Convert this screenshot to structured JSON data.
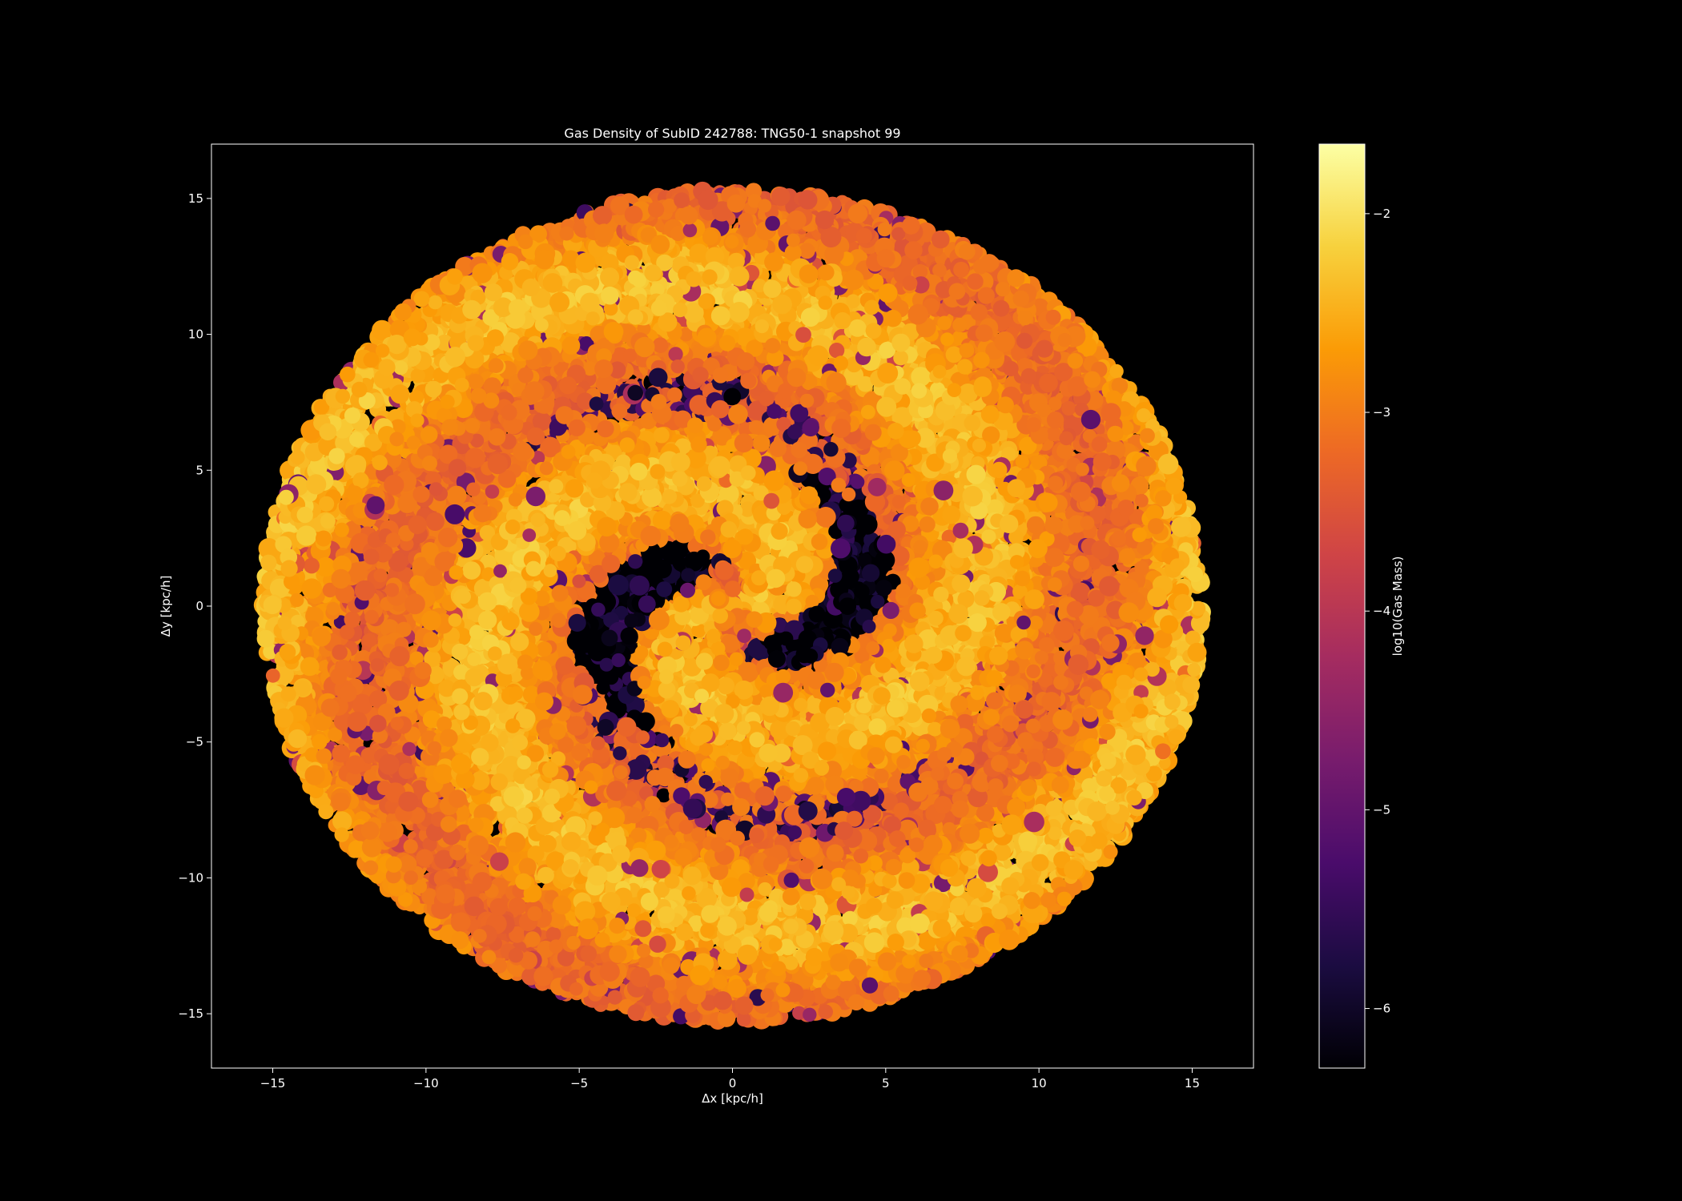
{
  "chart_data": {
    "type": "scatter",
    "title": "Gas Density of SubID 242788: TNG50-1 snapshot 99",
    "xlabel": "Δx [kpc/h]",
    "ylabel": "Δy [kpc/h]",
    "xlim": [
      -17,
      17
    ],
    "ylim": [
      -17,
      17
    ],
    "xticks": [
      -15,
      -10,
      -5,
      0,
      5,
      10,
      15
    ],
    "yticks": [
      -15,
      -10,
      -5,
      0,
      5,
      10,
      15
    ],
    "xtick_labels": [
      "−15",
      "−10",
      "−5",
      "0",
      "5",
      "10",
      "15"
    ],
    "ytick_labels": [
      "−15",
      "−10",
      "−5",
      "0",
      "5",
      "10",
      "15"
    ],
    "grid": false,
    "background": "#000000",
    "colormap": "inferno",
    "colorbar": {
      "label": "log10(Gas Mass)",
      "range": [
        -6.3,
        -1.65
      ],
      "ticks": [
        -6,
        -5,
        -4,
        -3,
        -2
      ],
      "tick_labels": [
        "−6",
        "−5",
        "−4",
        "−3",
        "−2"
      ],
      "colors": [
        "#000004",
        "#1b0c41",
        "#4a0c6b",
        "#781c6d",
        "#a52c60",
        "#cf4446",
        "#ed6925",
        "#fb9b06",
        "#f7d13d",
        "#fcffa4"
      ]
    },
    "distribution": {
      "shape": "disk",
      "radius": 15.3,
      "typical_value": -2.8,
      "features": "two-armed spiral of dense gas with low-density voids around the centre"
    }
  }
}
